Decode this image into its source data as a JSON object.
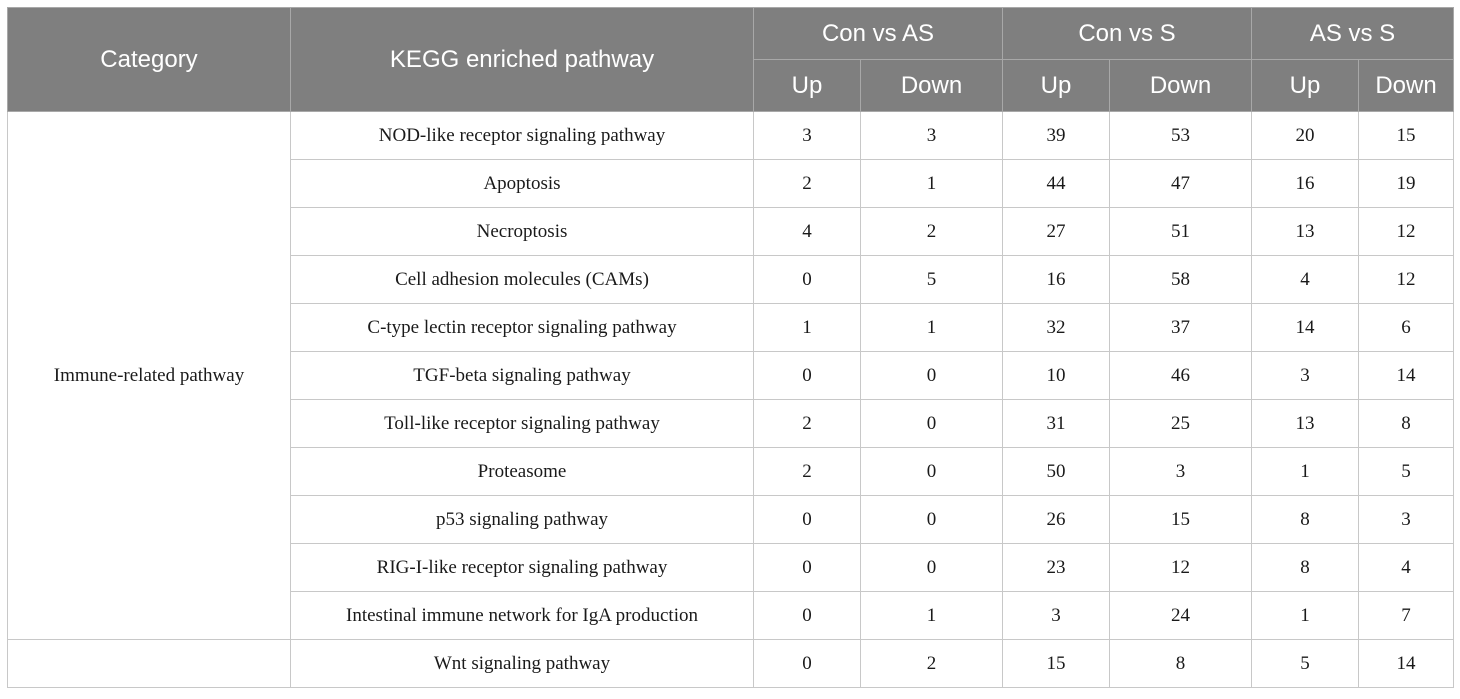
{
  "header": {
    "category": "Category",
    "pathway": "KEGG enriched pathway",
    "groups": [
      "Con vs AS",
      "Con vs S",
      "AS vs S"
    ],
    "up": "Up",
    "down": "Down"
  },
  "groups": [
    {
      "category": "Immune-related pathway",
      "rows": [
        {
          "pathway": "NOD-like receptor signaling pathway",
          "values": [
            "3",
            "3",
            "39",
            "53",
            "20",
            "15"
          ]
        },
        {
          "pathway": "Apoptosis",
          "values": [
            "2",
            "1",
            "44",
            "47",
            "16",
            "19"
          ]
        },
        {
          "pathway": "Necroptosis",
          "values": [
            "4",
            "2",
            "27",
            "51",
            "13",
            "12"
          ]
        },
        {
          "pathway": "Cell adhesion molecules (CAMs)",
          "values": [
            "0",
            "5",
            "16",
            "58",
            "4",
            "12"
          ]
        },
        {
          "pathway": "C-type lectin receptor signaling pathway",
          "values": [
            "1",
            "1",
            "32",
            "37",
            "14",
            "6"
          ]
        },
        {
          "pathway": "TGF-beta signaling pathway",
          "values": [
            "0",
            "0",
            "10",
            "46",
            "3",
            "14"
          ]
        },
        {
          "pathway": "Toll-like receptor signaling pathway",
          "values": [
            "2",
            "0",
            "31",
            "25",
            "13",
            "8"
          ]
        },
        {
          "pathway": "Proteasome",
          "values": [
            "2",
            "0",
            "50",
            "3",
            "1",
            "5"
          ]
        },
        {
          "pathway": "p53 signaling pathway",
          "values": [
            "0",
            "0",
            "26",
            "15",
            "8",
            "3"
          ]
        },
        {
          "pathway": "RIG-I-like receptor signaling pathway",
          "values": [
            "0",
            "0",
            "23",
            "12",
            "8",
            "4"
          ]
        },
        {
          "pathway": "Intestinal immune network for IgA production",
          "values": [
            "0",
            "1",
            "3",
            "24",
            "1",
            "7"
          ]
        }
      ]
    },
    {
      "category": "",
      "rows": [
        {
          "pathway": "Wnt signaling pathway",
          "values": [
            "0",
            "2",
            "15",
            "8",
            "5",
            "14"
          ]
        }
      ]
    }
  ]
}
